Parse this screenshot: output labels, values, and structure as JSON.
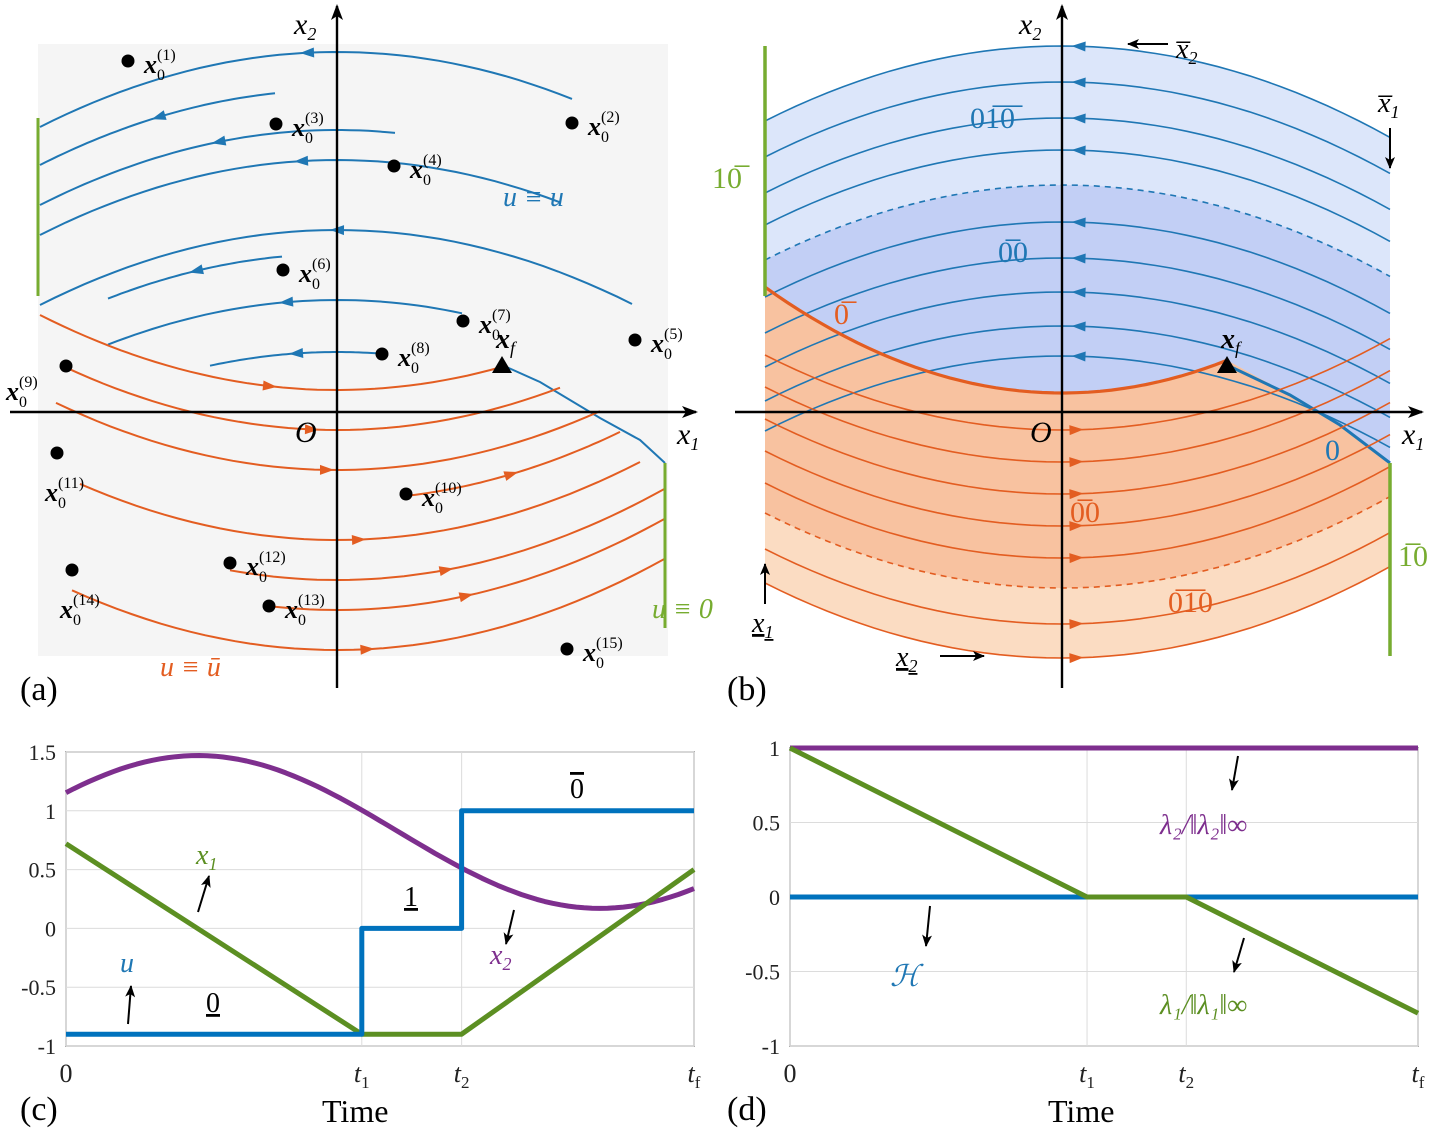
{
  "panels": {
    "a": {
      "tag": "(a)",
      "axis_x": "x",
      "axis_x_sub": "1",
      "axis_y": "x",
      "axis_y_sub": "2",
      "origin": "O",
      "label_u_upper": "u ≡ u",
      "label_u_lower": "u ≡ ū",
      "label_u_zero": "u ≡ 0",
      "xf": "x",
      "xf_sub": "f",
      "points": [
        "(1)",
        "(2)",
        "(3)",
        "(4)",
        "(5)",
        "(6)",
        "(7)",
        "(8)",
        "(9)",
        "(10)",
        "(11)",
        "(12)",
        "(13)",
        "(14)",
        "(15)"
      ],
      "point_base": "x",
      "point_sub": "0"
    },
    "b": {
      "tag": "(b)",
      "axis_x": "x",
      "axis_x_sub": "1",
      "axis_y": "x",
      "axis_y_sub": "2",
      "origin": "O",
      "xf": "x",
      "xf_sub": "f",
      "regions": {
        "r_01_0": "01̅0̅",
        "r_00": "0̅0",
        "r_0bar": "0̅",
        "r_0under": "0",
        "r_1_0": "10̅",
        "r_00_lower": "0̅0",
        "r_010": "0̅1̅0",
        "r_10_low": "1̅0"
      },
      "bounds": {
        "xbar2": "x̅",
        "xbar2_sub": "2",
        "xbar1": "x̅",
        "xbar1_sub": "1",
        "xund1": "x",
        "xund1_sub": "1",
        "xund2": "x",
        "xund2_sub": "2"
      }
    },
    "c": {
      "tag": "(c)",
      "xlabel": "Time",
      "t_ticks": [
        "0",
        "t",
        "t",
        "t"
      ],
      "t_subs": [
        "",
        "1",
        "2",
        "f"
      ],
      "y_ticks": [
        "1.5",
        "1",
        "0.5",
        "0",
        "-0.5",
        "-1"
      ],
      "series_labels": {
        "u": "u",
        "x1": "x",
        "x1_sub": "1",
        "x2": "x",
        "x2_sub": "2"
      },
      "annot": {
        "a0": "0",
        "a1": "1",
        "a2": "0"
      }
    },
    "d": {
      "tag": "(d)",
      "xlabel": "Time",
      "t_ticks": [
        "0",
        "t",
        "t",
        "t"
      ],
      "t_subs": [
        "",
        "1",
        "2",
        "f"
      ],
      "y_ticks": [
        "1",
        "0.5",
        "0",
        "-0.5",
        "-1"
      ],
      "series_labels": {
        "lambda2": "λ₂/‖λ₂‖∞",
        "H": "ℋ",
        "lambda1": "λ₁/‖λ₁‖∞"
      }
    }
  },
  "colors": {
    "blue": "#1f77b4",
    "orange": "#e35d21",
    "green": "#77ac30",
    "purple": "#7e2f8e"
  },
  "chart_data": [
    {
      "type": "line",
      "panel": "c",
      "xlabel": "Time",
      "ylim": [
        -1,
        1.5
      ],
      "x_ticks": [
        "0",
        "t1",
        "t2",
        "tf"
      ],
      "grid": true,
      "series": [
        {
          "name": "u",
          "x": [
            "0",
            "t1",
            "t1",
            "t2",
            "t2",
            "tf"
          ],
          "values": [
            -0.9,
            -0.9,
            0,
            0,
            1,
            1
          ]
        },
        {
          "name": "x1",
          "x": [
            "0",
            "t1",
            "t2",
            "tf"
          ],
          "values": [
            0.72,
            -0.9,
            -0.9,
            0.5
          ]
        },
        {
          "name": "x2",
          "x": [
            "0",
            "peak",
            "t2",
            "min",
            "tf"
          ],
          "values": [
            1.18,
            1.47,
            0.47,
            0.1,
            0.2
          ]
        }
      ]
    },
    {
      "type": "line",
      "panel": "d",
      "xlabel": "Time",
      "ylim": [
        -1,
        1
      ],
      "x_ticks": [
        "0",
        "t1",
        "t2",
        "tf"
      ],
      "grid": true,
      "series": [
        {
          "name": "λ₂/‖λ₂‖∞",
          "x": [
            "0",
            "tf"
          ],
          "values": [
            1,
            1
          ]
        },
        {
          "name": "ℋ",
          "x": [
            "0",
            "tf"
          ],
          "values": [
            0,
            0
          ]
        },
        {
          "name": "λ₁/‖λ₁‖∞",
          "x": [
            "0",
            "t1",
            "t2",
            "tf"
          ],
          "values": [
            1,
            0,
            0,
            -0.78
          ]
        }
      ]
    }
  ]
}
